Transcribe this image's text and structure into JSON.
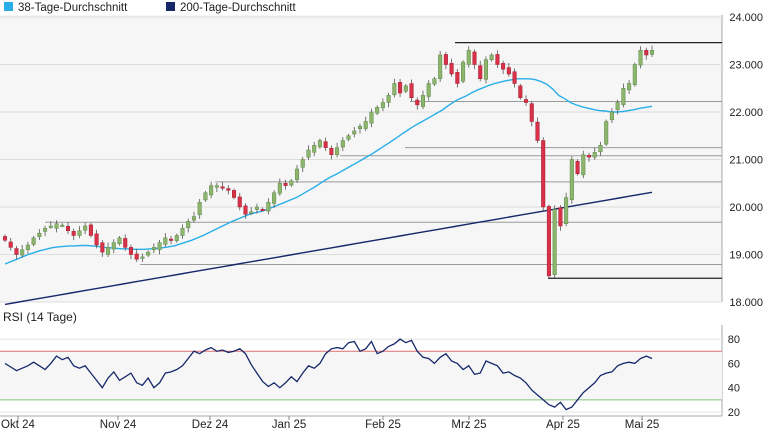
{
  "colors": {
    "ma38": "#29aee8",
    "ma200": "#16286a",
    "up": "#8db56e",
    "down": "#d83148",
    "rsi": "#16286a",
    "overbought": "#e07070",
    "oversold": "#86c17c",
    "support": "#333333",
    "panel_bg": "#f6f6f6"
  },
  "chart_data": [
    {
      "type": "candlestick",
      "legend": [
        {
          "name": "38-Tage-Durchschnitt",
          "color": "#29aee8"
        },
        {
          "name": "200-Tage-Durchschnitt",
          "color": "#16286a"
        }
      ],
      "legend_position": "top-left",
      "ylim": [
        18000,
        24000
      ],
      "yticks": [
        "18.000",
        "19.000",
        "20.000",
        "21.000",
        "22.000",
        "23.000",
        "24.000"
      ],
      "xticks": [
        "Okt 24",
        "Nov 24",
        "Dez 24",
        "Jan 25",
        "Feb 25",
        "Mrz 25",
        "Apr 25",
        "Mai 25"
      ],
      "grid": true,
      "closes": [
        19300,
        19150,
        19000,
        19100,
        19200,
        19350,
        19450,
        19550,
        19600,
        19650,
        19620,
        19500,
        19400,
        19500,
        19600,
        19400,
        19200,
        19050,
        19150,
        19250,
        19350,
        19150,
        19000,
        18900,
        18950,
        19050,
        19150,
        19250,
        19350,
        19300,
        19400,
        19550,
        19700,
        19800,
        20100,
        20300,
        20450,
        20450,
        20400,
        20350,
        20200,
        20000,
        19850,
        19900,
        20000,
        19950,
        20100,
        20300,
        20500,
        20450,
        20550,
        20800,
        21000,
        21200,
        21300,
        21400,
        21250,
        21100,
        21250,
        21400,
        21500,
        21600,
        21700,
        21800,
        22000,
        22100,
        22200,
        22350,
        22600,
        22400,
        22550,
        22300,
        22150,
        22350,
        22600,
        22700,
        23200,
        23000,
        22800,
        22600,
        23050,
        23300,
        23000,
        22700,
        23100,
        23200,
        23000,
        22900,
        22800,
        22600,
        22300,
        22200,
        21800,
        21400,
        20000,
        18550,
        19950,
        19600,
        20200,
        21000,
        20700,
        21100,
        21050,
        21150,
        21300,
        21800,
        22000,
        22200,
        22500,
        22600,
        23000,
        23300,
        23200,
        23300
      ],
      "ma38": [
        18800,
        18850,
        18900,
        18950,
        19000,
        19040,
        19080,
        19110,
        19140,
        19160,
        19170,
        19180,
        19180,
        19190,
        19190,
        19180,
        19170,
        19150,
        19140,
        19130,
        19120,
        19120,
        19110,
        19110,
        19110,
        19120,
        19130,
        19140,
        19160,
        19180,
        19220,
        19260,
        19300,
        19350,
        19400,
        19460,
        19520,
        19580,
        19640,
        19700,
        19750,
        19800,
        19850,
        19880,
        19910,
        19950,
        20000,
        20050,
        20100,
        20150,
        20200,
        20270,
        20340,
        20410,
        20490,
        20570,
        20640,
        20700,
        20770,
        20840,
        20910,
        20980,
        21050,
        21120,
        21200,
        21280,
        21360,
        21440,
        21530,
        21610,
        21690,
        21760,
        21830,
        21900,
        21970,
        22040,
        22130,
        22210,
        22280,
        22330,
        22400,
        22460,
        22510,
        22560,
        22600,
        22630,
        22660,
        22680,
        22700,
        22700,
        22700,
        22680,
        22640,
        22580,
        22480,
        22350,
        22280,
        22200,
        22150,
        22110,
        22080,
        22050,
        22030,
        22020,
        22000,
        22000,
        22010,
        22030,
        22050,
        22080,
        22100,
        22120
      ],
      "ma200": [
        17950,
        17990,
        18030,
        18070,
        18110,
        18150,
        18190,
        18230,
        18270,
        18310,
        18350,
        18390,
        18430,
        18470,
        18510,
        18550,
        18590,
        18630,
        18670,
        18710,
        18750,
        18790,
        18830,
        18870,
        18910,
        18950,
        18990,
        19030,
        19070,
        19110,
        19150,
        19190,
        19230,
        19270,
        19310,
        19350,
        19390,
        19430,
        19470,
        19510,
        19550,
        19590,
        19630,
        19670,
        19710,
        19750,
        19790,
        19830,
        19870,
        19910,
        19950,
        19990,
        20030,
        20070,
        20110,
        20150,
        20190,
        20230,
        20270,
        20310
      ],
      "horizontal_levels": [
        23460,
        22220,
        21250,
        21080,
        20530,
        19680,
        18790,
        18500
      ]
    },
    {
      "type": "line",
      "title": "RSI (14 Tage)",
      "ylim": [
        20,
        85
      ],
      "yticks": [
        "20",
        "40",
        "60",
        "80"
      ],
      "reference_lines": [
        70,
        30
      ],
      "grid": true,
      "values": [
        60,
        57,
        54,
        56,
        58,
        61,
        58,
        55,
        60,
        66,
        63,
        65,
        58,
        56,
        58,
        52,
        46,
        40,
        48,
        53,
        46,
        49,
        52,
        44,
        42,
        48,
        40,
        44,
        52,
        53,
        55,
        58,
        64,
        70,
        68,
        71,
        73,
        70,
        71,
        69,
        70,
        72,
        68,
        59,
        52,
        45,
        41,
        44,
        40,
        44,
        49,
        45,
        52,
        58,
        56,
        60,
        68,
        72,
        73,
        72,
        77,
        78,
        70,
        72,
        78,
        68,
        70,
        74,
        76,
        80,
        77,
        79,
        70,
        65,
        64,
        60,
        65,
        68,
        62,
        60,
        55,
        58,
        51,
        52,
        62,
        60,
        58,
        52,
        53,
        50,
        48,
        44,
        38,
        34,
        30,
        26,
        24,
        28,
        22,
        24,
        30,
        36,
        40,
        44,
        50,
        52,
        53,
        58,
        60,
        61,
        60,
        64,
        66,
        64
      ]
    }
  ]
}
